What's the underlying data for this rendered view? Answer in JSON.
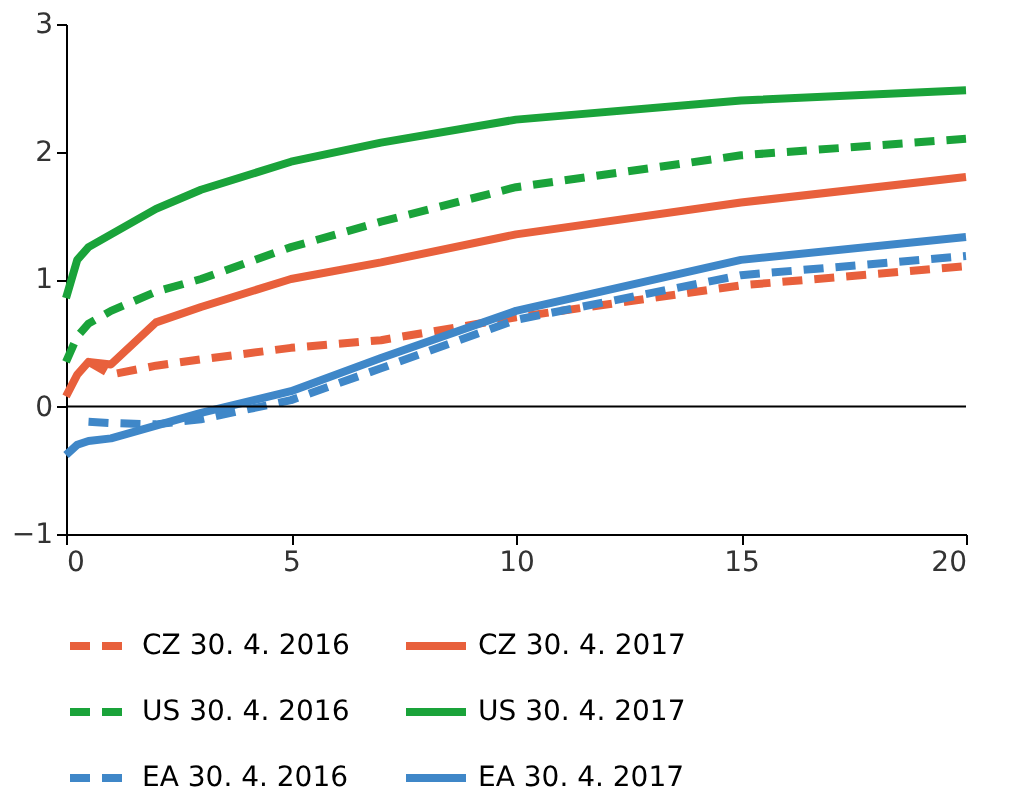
{
  "chart_data": {
    "type": "line",
    "x": [
      0,
      0.25,
      0.5,
      1,
      2,
      3,
      5,
      7,
      10,
      15,
      20
    ],
    "series": [
      {
        "name": "CZ 30. 4. 2016",
        "color": "#e8603c",
        "line_style": "dashed",
        "values": [
          null,
          null,
          0.35,
          0.25,
          0.32,
          0.37,
          0.46,
          0.52,
          0.7,
          0.95,
          1.1
        ]
      },
      {
        "name": "CZ 30. 4. 2017",
        "color": "#e8603c",
        "line_style": "solid",
        "values": [
          0.08,
          0.25,
          0.35,
          0.33,
          0.66,
          0.78,
          1.0,
          1.13,
          1.35,
          1.6,
          1.8
        ]
      },
      {
        "name": "US 30. 4. 2016",
        "color": "#1aa33a",
        "line_style": "dashed",
        "values": [
          0.35,
          0.55,
          0.65,
          0.75,
          0.9,
          1.0,
          1.25,
          1.45,
          1.72,
          1.97,
          2.1
        ]
      },
      {
        "name": "US 30. 4. 2017",
        "color": "#1aa33a",
        "line_style": "solid",
        "values": [
          0.85,
          1.15,
          1.25,
          1.35,
          1.55,
          1.7,
          1.92,
          2.07,
          2.25,
          2.4,
          2.48
        ]
      },
      {
        "name": "EA 30. 4. 2016",
        "color": "#3f87c8",
        "line_style": "dashed",
        "values": [
          null,
          null,
          -0.12,
          -0.13,
          -0.14,
          -0.1,
          0.05,
          0.3,
          0.68,
          1.03,
          1.18
        ]
      },
      {
        "name": "EA 30. 4. 2017",
        "color": "#3f87c8",
        "line_style": "solid",
        "values": [
          -0.38,
          -0.3,
          -0.27,
          -0.25,
          -0.15,
          -0.05,
          0.12,
          0.38,
          0.75,
          1.15,
          1.33
        ]
      }
    ],
    "xlim": [
      0,
      20
    ],
    "xticks": [
      0,
      5,
      10,
      15,
      20
    ],
    "ylim": [
      -1,
      3
    ],
    "yticks": [
      -1,
      0,
      1,
      2,
      3
    ],
    "grid": false,
    "legend": "bottom",
    "marker": "none",
    "ref_lines": [
      {
        "axis": "y",
        "value": 0,
        "color": "#000000",
        "line_style": "solid"
      }
    ]
  }
}
